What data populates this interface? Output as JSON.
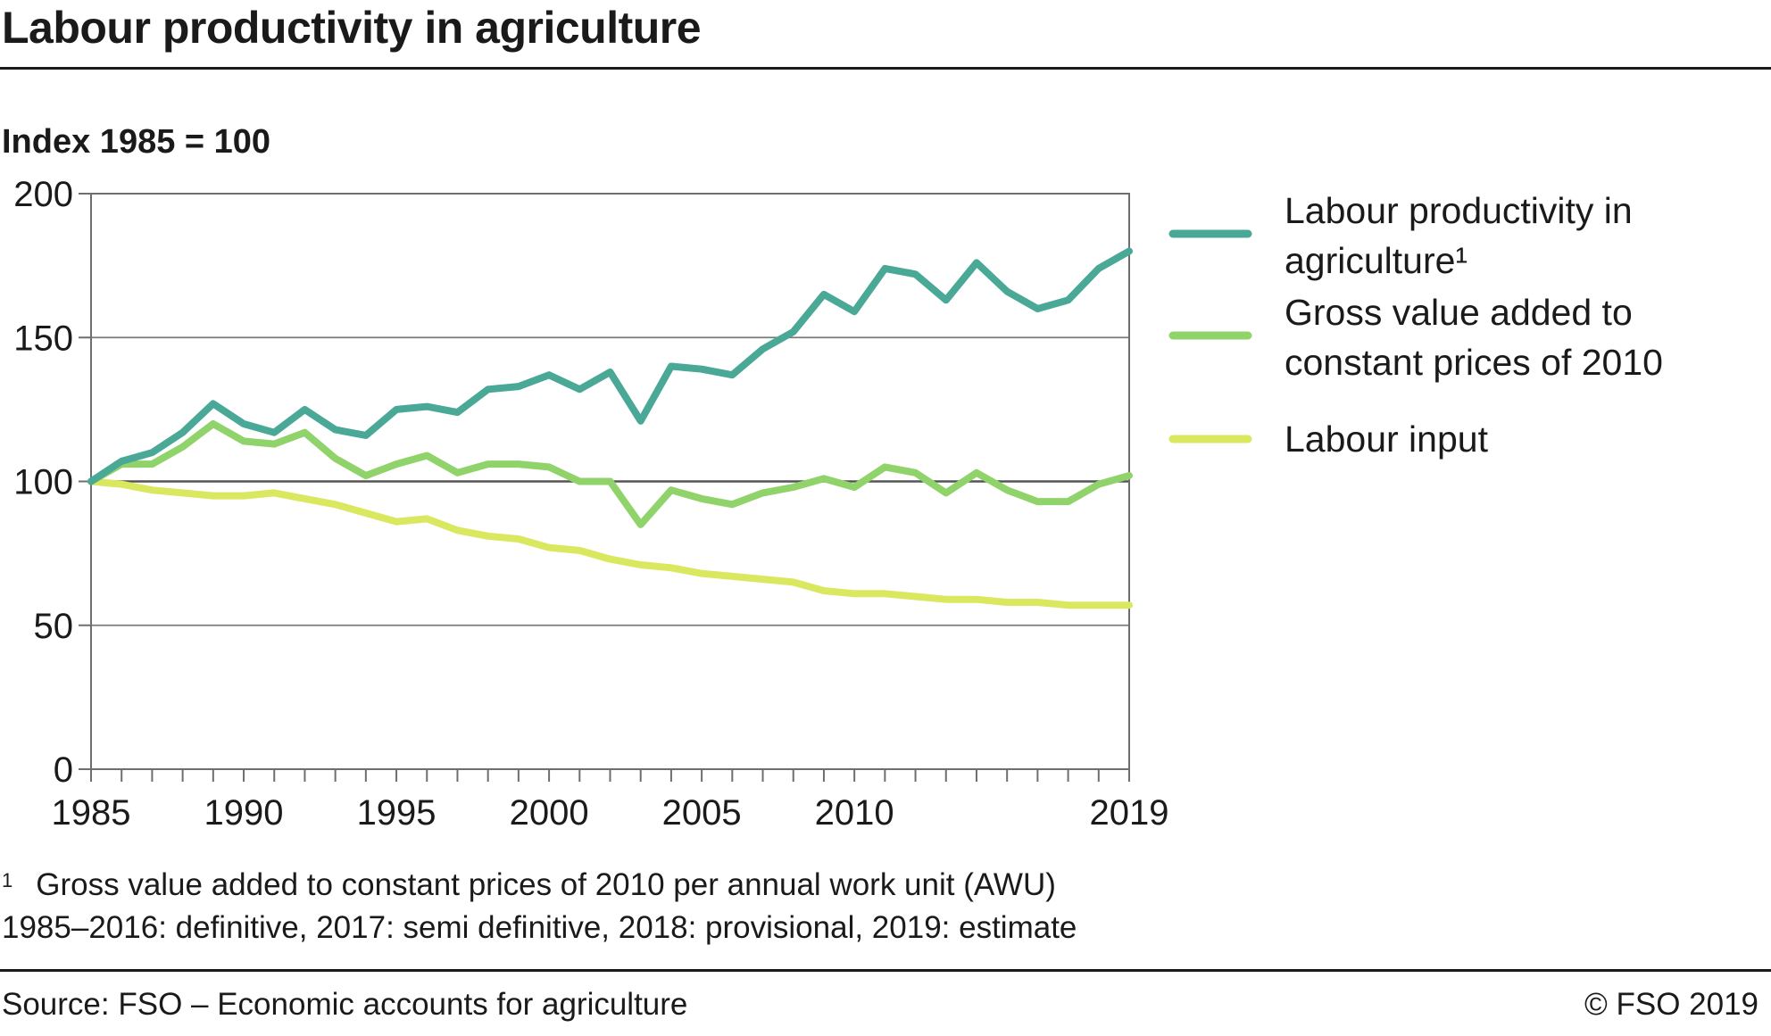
{
  "header": {
    "title": "Labour productivity in agriculture",
    "subtitle": "Index 1985 = 100"
  },
  "footer": {
    "footnote_mark": "1",
    "footnote": "Gross value added to constant prices of 2010 per annual work unit (AWU)",
    "note": "1985–2016: definitive, 2017: semi definitive, 2018: provisional, 2019: estimate",
    "source": "Source: FSO – Economic accounts for agriculture",
    "copyright": "© FSO 2019"
  },
  "chart_data": {
    "type": "line",
    "ylabel": "Index 1985 = 100",
    "ylim": [
      0,
      200
    ],
    "yticks": [
      0,
      50,
      100,
      150,
      200
    ],
    "xlim": [
      1985,
      2019
    ],
    "xtick_labels": [
      "1985",
      "1990",
      "1995",
      "2000",
      "2005",
      "2010",
      "2019"
    ],
    "xtick_values": [
      1985,
      1990,
      1995,
      2000,
      2005,
      2010,
      2019
    ],
    "grid": "horizontal",
    "legend_position": "right",
    "x": [
      1985,
      1986,
      1987,
      1988,
      1989,
      1990,
      1991,
      1992,
      1993,
      1994,
      1995,
      1996,
      1997,
      1998,
      1999,
      2000,
      2001,
      2002,
      2003,
      2004,
      2005,
      2006,
      2007,
      2008,
      2009,
      2010,
      2011,
      2012,
      2013,
      2014,
      2015,
      2016,
      2017,
      2018,
      2019
    ],
    "series": [
      {
        "name": "Labour productivity in agriculture",
        "name_lines": [
          "Labour productivity in",
          "agriculture¹"
        ],
        "color": "#4aa896",
        "values": [
          100,
          107,
          110,
          117,
          127,
          120,
          117,
          125,
          118,
          116,
          125,
          126,
          124,
          132,
          133,
          137,
          132,
          138,
          121,
          140,
          139,
          137,
          146,
          152,
          165,
          159,
          174,
          172,
          163,
          176,
          166,
          160,
          163,
          174,
          180
        ]
      },
      {
        "name": "Gross value added to constant prices of 2010",
        "name_lines": [
          "Gross value added to",
          "constant prices of 2010"
        ],
        "color": "#8fd36a",
        "values": [
          100,
          106,
          106,
          112,
          120,
          114,
          113,
          117,
          108,
          102,
          106,
          109,
          103,
          106,
          106,
          105,
          100,
          100,
          85,
          97,
          94,
          92,
          96,
          98,
          101,
          98,
          105,
          103,
          96,
          103,
          97,
          93,
          93,
          99,
          102
        ]
      },
      {
        "name": "Labour input",
        "name_lines": [
          "Labour input"
        ],
        "color": "#d9e85f",
        "values": [
          100,
          99,
          97,
          96,
          95,
          95,
          96,
          94,
          92,
          89,
          86,
          87,
          83,
          81,
          80,
          77,
          76,
          73,
          71,
          70,
          68,
          67,
          66,
          65,
          62,
          61,
          61,
          60,
          59,
          59,
          58,
          58,
          57,
          57,
          57
        ]
      }
    ]
  }
}
